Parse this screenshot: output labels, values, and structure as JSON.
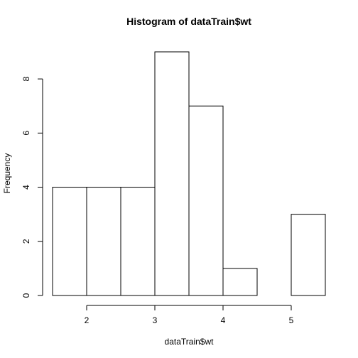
{
  "chart_data": {
    "type": "bar",
    "title": "Histogram of dataTrain$wt",
    "xlabel": "dataTrain$wt",
    "ylabel": "Frequency",
    "bins": [
      {
        "start": 1.5,
        "end": 2.0,
        "count": 4
      },
      {
        "start": 2.0,
        "end": 2.5,
        "count": 4
      },
      {
        "start": 2.5,
        "end": 3.0,
        "count": 4
      },
      {
        "start": 3.0,
        "end": 3.5,
        "count": 9
      },
      {
        "start": 3.5,
        "end": 4.0,
        "count": 7
      },
      {
        "start": 4.0,
        "end": 4.5,
        "count": 1
      },
      {
        "start": 4.5,
        "end": 5.0,
        "count": 0
      },
      {
        "start": 5.0,
        "end": 5.5,
        "count": 3
      }
    ],
    "xlim": [
      1.5,
      5.5
    ],
    "ylim": [
      0,
      9
    ],
    "xticks": [
      2,
      3,
      4,
      5
    ],
    "yticks": [
      0,
      2,
      4,
      6,
      8
    ],
    "grid": false,
    "colors": {
      "bar_fill": "#ffffff",
      "bar_stroke": "#000000"
    }
  }
}
